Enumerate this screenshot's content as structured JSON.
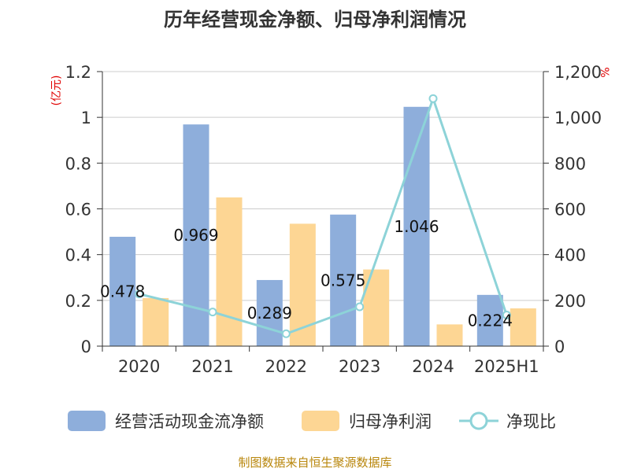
{
  "chart_data": {
    "type": "bar",
    "title": "历年经营现金净额、归母净利润情况",
    "categories": [
      "2020",
      "2021",
      "2022",
      "2023",
      "2024",
      "2025H1"
    ],
    "y_left": {
      "unit": "(亿元)",
      "range": [
        0,
        1.2
      ],
      "ticks": [
        "0",
        "0.2",
        "0.4",
        "0.6",
        "0.8",
        "1",
        "1.2"
      ]
    },
    "y_right": {
      "unit": "%",
      "range": [
        0,
        1200
      ],
      "ticks": [
        "0",
        "200",
        "400",
        "600",
        "800",
        "1,000",
        "1,200"
      ]
    },
    "series": [
      {
        "name": "经营活动现金流净额",
        "type": "bar",
        "axis": "left",
        "color": "#8eaedb",
        "values": [
          0.478,
          0.969,
          0.289,
          0.575,
          1.046,
          0.224
        ],
        "labels": [
          "0.478",
          "0.969",
          "0.289",
          "0.575",
          "1.046",
          "0.224"
        ]
      },
      {
        "name": "归母净利润",
        "type": "bar",
        "axis": "left",
        "color": "#fdd694",
        "values": [
          0.21,
          0.65,
          0.535,
          0.335,
          0.095,
          0.165
        ]
      },
      {
        "name": "净现比",
        "type": "line",
        "axis": "right",
        "color": "#8dd3d8",
        "values": [
          228,
          149,
          54,
          172,
          1082,
          136
        ]
      }
    ],
    "grid": true,
    "legend_position": "bottom",
    "source": "制图数据来自恒生聚源数据库"
  }
}
